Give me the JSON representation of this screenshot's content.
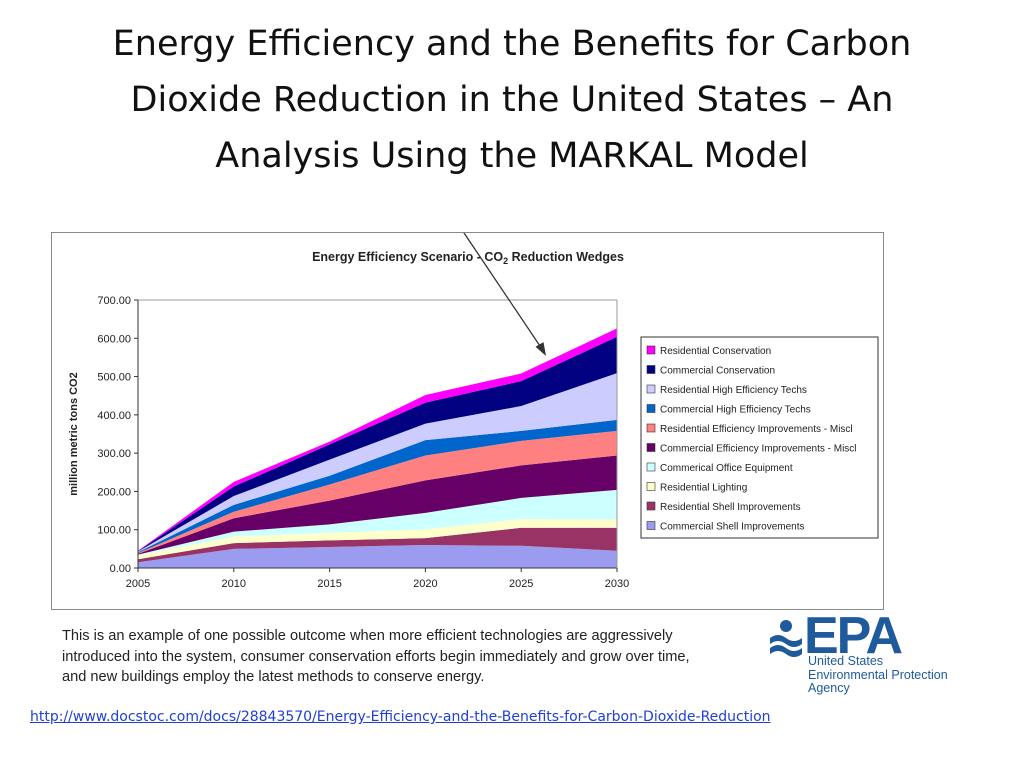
{
  "slide": {
    "title_lines": [
      "Energy Efficiency and the Benefits for Carbon",
      "Dioxide Reduction in the United States – An",
      "Analysis Using the MARKAL Model"
    ]
  },
  "chart_data": {
    "type": "area",
    "stacked": true,
    "title_prefix": "Energy Efficiency Scenario - CO",
    "title_sub": "2",
    "title_suffix": " Reduction Wedges",
    "xlabel": "",
    "ylabel": "million metric tons CO2",
    "x": [
      "2005",
      "2010",
      "2015",
      "2020",
      "2025",
      "2030"
    ],
    "ylim": [
      0,
      700
    ],
    "yticks": [
      "0.00",
      "100.00",
      "200.00",
      "300.00",
      "400.00",
      "500.00",
      "600.00",
      "700.00"
    ],
    "grid": false,
    "legend_position": "right",
    "series": [
      {
        "name": "Commercial Shell Improvements",
        "color": "#9b9bef",
        "values": [
          15,
          50,
          55,
          60,
          58,
          45
        ]
      },
      {
        "name": "Residential Shell Improvements",
        "color": "#993366",
        "values": [
          8,
          15,
          17,
          18,
          47,
          60
        ]
      },
      {
        "name": "Residential Lighting",
        "color": "#ffffcc",
        "values": [
          10,
          17,
          20,
          23,
          23,
          22
        ]
      },
      {
        "name": "Commerical Office Equipment",
        "color": "#ccffff",
        "values": [
          2,
          13,
          22,
          43,
          55,
          77
        ]
      },
      {
        "name": "Commercial Efficiency Improvements - Miscl",
        "color": "#660066",
        "values": [
          2,
          35,
          62,
          85,
          85,
          90
        ]
      },
      {
        "name": "Residential Efficiency Improvements - Miscl",
        "color": "#ff8080",
        "values": [
          2,
          17,
          42,
          65,
          64,
          64
        ]
      },
      {
        "name": "Commercial High Efficiency Techs",
        "color": "#0066cc",
        "values": [
          2,
          18,
          23,
          40,
          26,
          29
        ]
      },
      {
        "name": "Residential High Efficiency Techs",
        "color": "#ccccff",
        "values": [
          2,
          23,
          42,
          43,
          65,
          122
        ]
      },
      {
        "name": "Commercial Conservation",
        "color": "#000080",
        "values": [
          1,
          25,
          40,
          55,
          65,
          95
        ]
      },
      {
        "name": "Residential Conservation",
        "color": "#ff00ff",
        "values": [
          1,
          12,
          7,
          20,
          20,
          22
        ]
      }
    ]
  },
  "caption": {
    "lines": [
      "This is an example of one possible outcome when more efficient technologies are aggressively",
      "introduced into the system, consumer conservation efforts begin immediately and grow over time,",
      "and new buildings employ the latest methods to conserve energy."
    ]
  },
  "logo": {
    "wordmark": "EPA",
    "agency_lines": [
      "United States",
      "Environmental Protection",
      "Agency"
    ],
    "color": "#1e5a9c"
  },
  "link": {
    "text": "http://www.docstoc.com/docs/28843570/Energy-Efficiency-and-the-Benefits-for-Carbon-Dioxide-Reduction"
  }
}
